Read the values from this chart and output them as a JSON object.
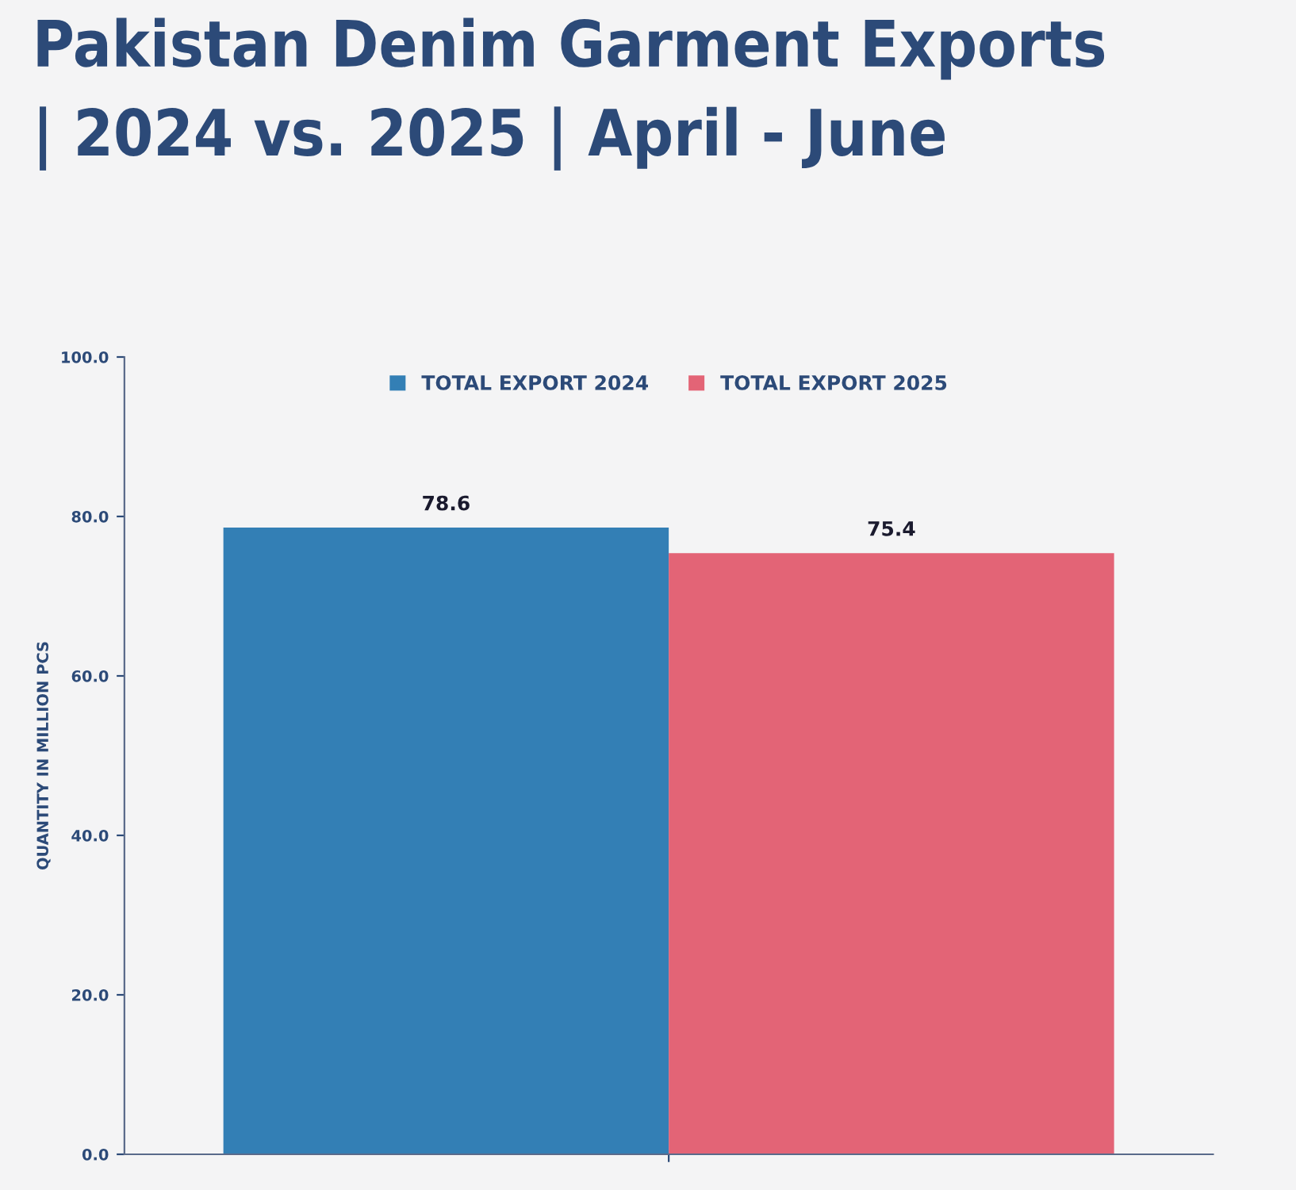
{
  "chart_data": {
    "type": "bar",
    "title": "Pakistan Denim Garment Exports\n| 2024 vs. 2025 | April - June",
    "ylabel": "QUANTITY IN MILLION PCS",
    "categories": [
      null
    ],
    "series": [
      {
        "name": "TOTAL EXPORT 2024",
        "color": "#337fb5",
        "values": [
          78.6
        ]
      },
      {
        "name": "TOTAL EXPORT 2025",
        "color": "#e36476",
        "values": [
          75.4
        ]
      }
    ],
    "ylim": [
      0,
      100
    ],
    "yticks": [
      {
        "value": 0,
        "label": "0.0"
      },
      {
        "value": 20,
        "label": "20.0"
      },
      {
        "value": 40,
        "label": "40.0"
      },
      {
        "value": 60,
        "label": "60.0"
      },
      {
        "value": 80,
        "label": "80.0"
      },
      {
        "value": 100,
        "label": "100.0"
      }
    ],
    "data_labels": true,
    "legend": "top",
    "grid": false
  }
}
